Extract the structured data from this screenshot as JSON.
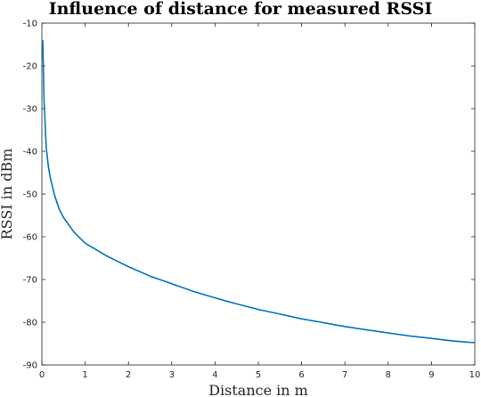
{
  "chart_data": {
    "type": "line",
    "title": "Influence of distance for measured RSSI",
    "xlabel": "Distance in m",
    "ylabel": "RSSI in dBm",
    "xlim": [
      0,
      10
    ],
    "ylim": [
      -90,
      -10
    ],
    "xticks": [
      "0",
      "1",
      "2",
      "3",
      "4",
      "5",
      "6",
      "7",
      "8",
      "9",
      "10"
    ],
    "yticks": [
      "-10",
      "-20",
      "-30",
      "-40",
      "-50",
      "-60",
      "-70",
      "-80",
      "-90"
    ],
    "grid": false,
    "series": [
      {
        "color": "#0072BD",
        "x": [
          0.02,
          0.05,
          0.1,
          0.15,
          0.2,
          0.3,
          0.4,
          0.5,
          0.75,
          1,
          1.5,
          2,
          2.5,
          3,
          3.5,
          4,
          4.5,
          5,
          5.5,
          6,
          6.5,
          7,
          7.5,
          8,
          8.5,
          9,
          9.5,
          10
        ],
        "y": [
          -14,
          -28,
          -39,
          -43.5,
          -46.5,
          -50.5,
          -53.5,
          -55.5,
          -59,
          -61.5,
          -64.5,
          -67,
          -69.2,
          -71,
          -72.8,
          -74.3,
          -75.7,
          -77,
          -78.1,
          -79.2,
          -80.1,
          -81,
          -81.8,
          -82.5,
          -83.2,
          -83.8,
          -84.4,
          -84.8
        ]
      }
    ]
  }
}
